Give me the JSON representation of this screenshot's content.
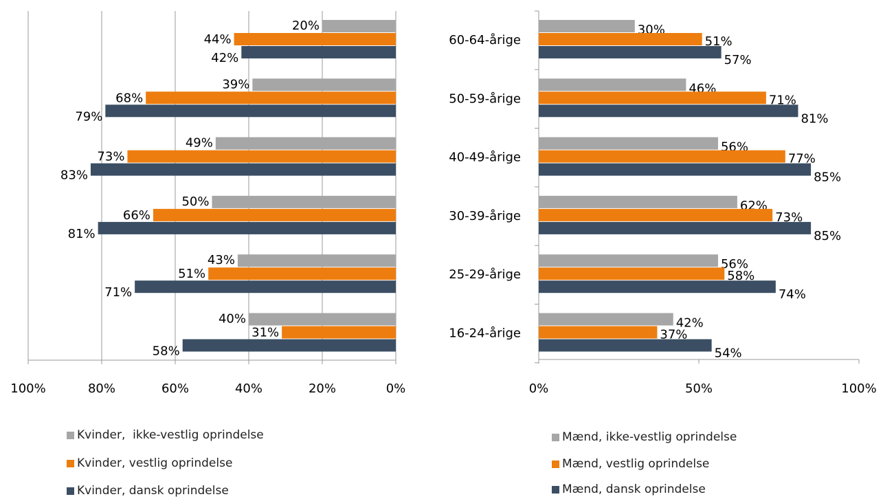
{
  "colors": {
    "non_western": "#a6a6a6",
    "western": "#ed7d0f",
    "danish": "#3b4e63",
    "axis": "#999999",
    "text": "#000000"
  },
  "chart_data": [
    {
      "type": "bar",
      "orientation": "horizontal",
      "x_reversed": true,
      "categories": [
        "60-64-årige",
        "50-59-årige",
        "40-49-årige",
        "30-39-årige",
        "25-29-årige",
        "16-24-årige"
      ],
      "show_category_labels": false,
      "xlim": [
        0,
        100
      ],
      "xticks": [
        "100%",
        "80%",
        "60%",
        "40%",
        "20%",
        "0%"
      ],
      "grid": true,
      "legend_position": "bottom",
      "series": [
        {
          "name": "Kvinder,  ikke-vestlig oprindelse",
          "color_key": "non_western",
          "values": [
            20,
            39,
            49,
            50,
            43,
            40
          ],
          "labels": [
            "20%",
            "39%",
            "49%",
            "50%",
            "43%",
            "40%"
          ]
        },
        {
          "name": "Kvinder, vestlig oprindelse",
          "color_key": "western",
          "values": [
            44,
            68,
            73,
            66,
            51,
            31
          ],
          "labels": [
            "44%",
            "68%",
            "73%",
            "66%",
            "51%",
            "31%"
          ]
        },
        {
          "name": "Kvinder, dansk oprindelse",
          "color_key": "danish",
          "values": [
            42,
            79,
            83,
            81,
            71,
            58
          ],
          "labels": [
            "42%",
            "79%",
            "83%",
            "81%",
            "71%",
            "58%"
          ]
        }
      ]
    },
    {
      "type": "bar",
      "orientation": "horizontal",
      "x_reversed": false,
      "categories": [
        "60-64-årige",
        "50-59-årige",
        "40-49-årige",
        "30-39-årige",
        "25-29-årige",
        "16-24-årige"
      ],
      "show_category_labels": true,
      "xlim": [
        0,
        100
      ],
      "xticks": [
        "0%",
        "50%",
        "100%"
      ],
      "grid": false,
      "legend_position": "bottom",
      "series": [
        {
          "name": "Mænd, ikke-vestlig oprindelse",
          "color_key": "non_western",
          "values": [
            30,
            46,
            56,
            62,
            56,
            42
          ],
          "labels": [
            "30%",
            "46%",
            "56%",
            "62%",
            "56%",
            "42%"
          ]
        },
        {
          "name": "Mænd, vestlig oprindelse",
          "color_key": "western",
          "values": [
            51,
            71,
            77,
            73,
            58,
            37
          ],
          "labels": [
            "51%",
            "71%",
            "77%",
            "73%",
            "58%",
            "37%"
          ]
        },
        {
          "name": "Mænd, dansk oprindelse",
          "color_key": "danish",
          "values": [
            57,
            81,
            85,
            85,
            74,
            54
          ],
          "labels": [
            "57%",
            "81%",
            "85%",
            "85%",
            "74%",
            "54%"
          ]
        }
      ]
    }
  ]
}
